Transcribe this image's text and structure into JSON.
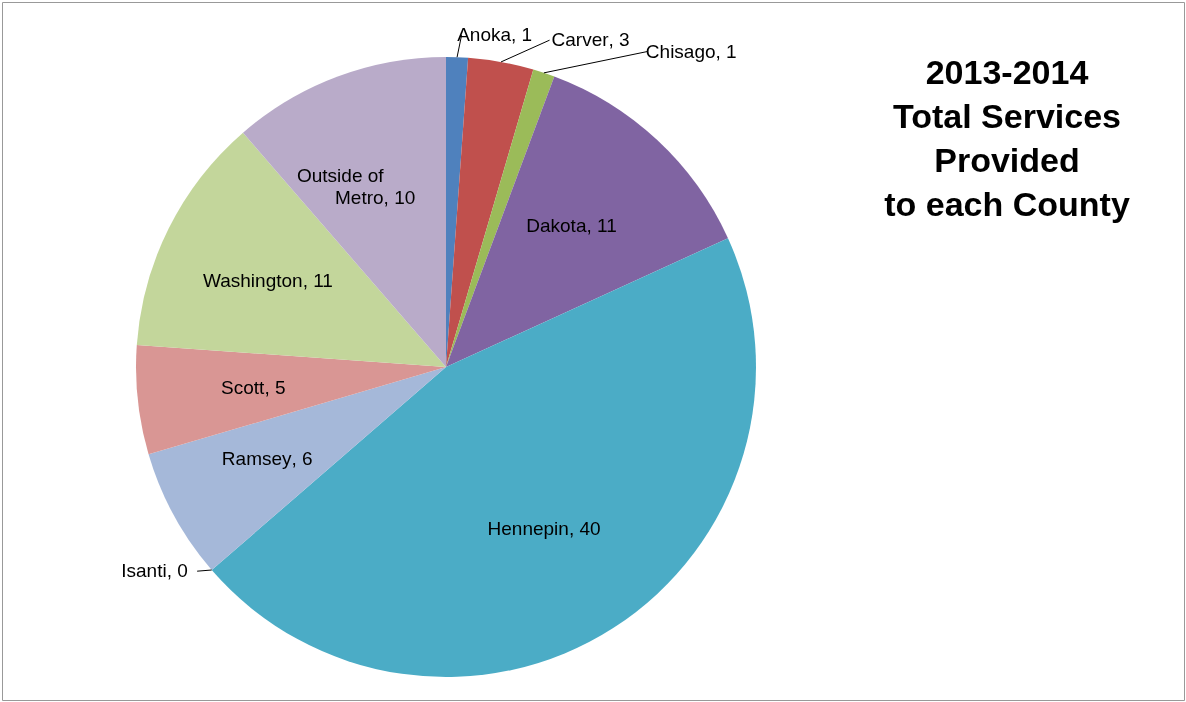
{
  "chart_data": {
    "type": "pie",
    "title": "2013-2014\nTotal Services\nProvided\nto each County",
    "categories": [
      "Anoka",
      "Carver",
      "Chisago",
      "Dakota",
      "Hennepin",
      "Isanti",
      "Ramsey",
      "Scott",
      "Washington",
      "Outside of Metro"
    ],
    "values": [
      1,
      3,
      1,
      11,
      40,
      0,
      6,
      5,
      11,
      10
    ],
    "value_labels": [
      ", 1",
      ", 3",
      ", 1",
      ", 11",
      ", 40",
      ", 0",
      ", 6",
      ", 5",
      ", 11",
      ", 10"
    ],
    "colors": [
      "#4f81bd",
      "#c0504d",
      "#9bbb59",
      "#8064a2",
      "#4bacc6",
      "#f79646",
      "#a5b8d9",
      "#d99694",
      "#c3d69b",
      "#b9abc9"
    ]
  }
}
